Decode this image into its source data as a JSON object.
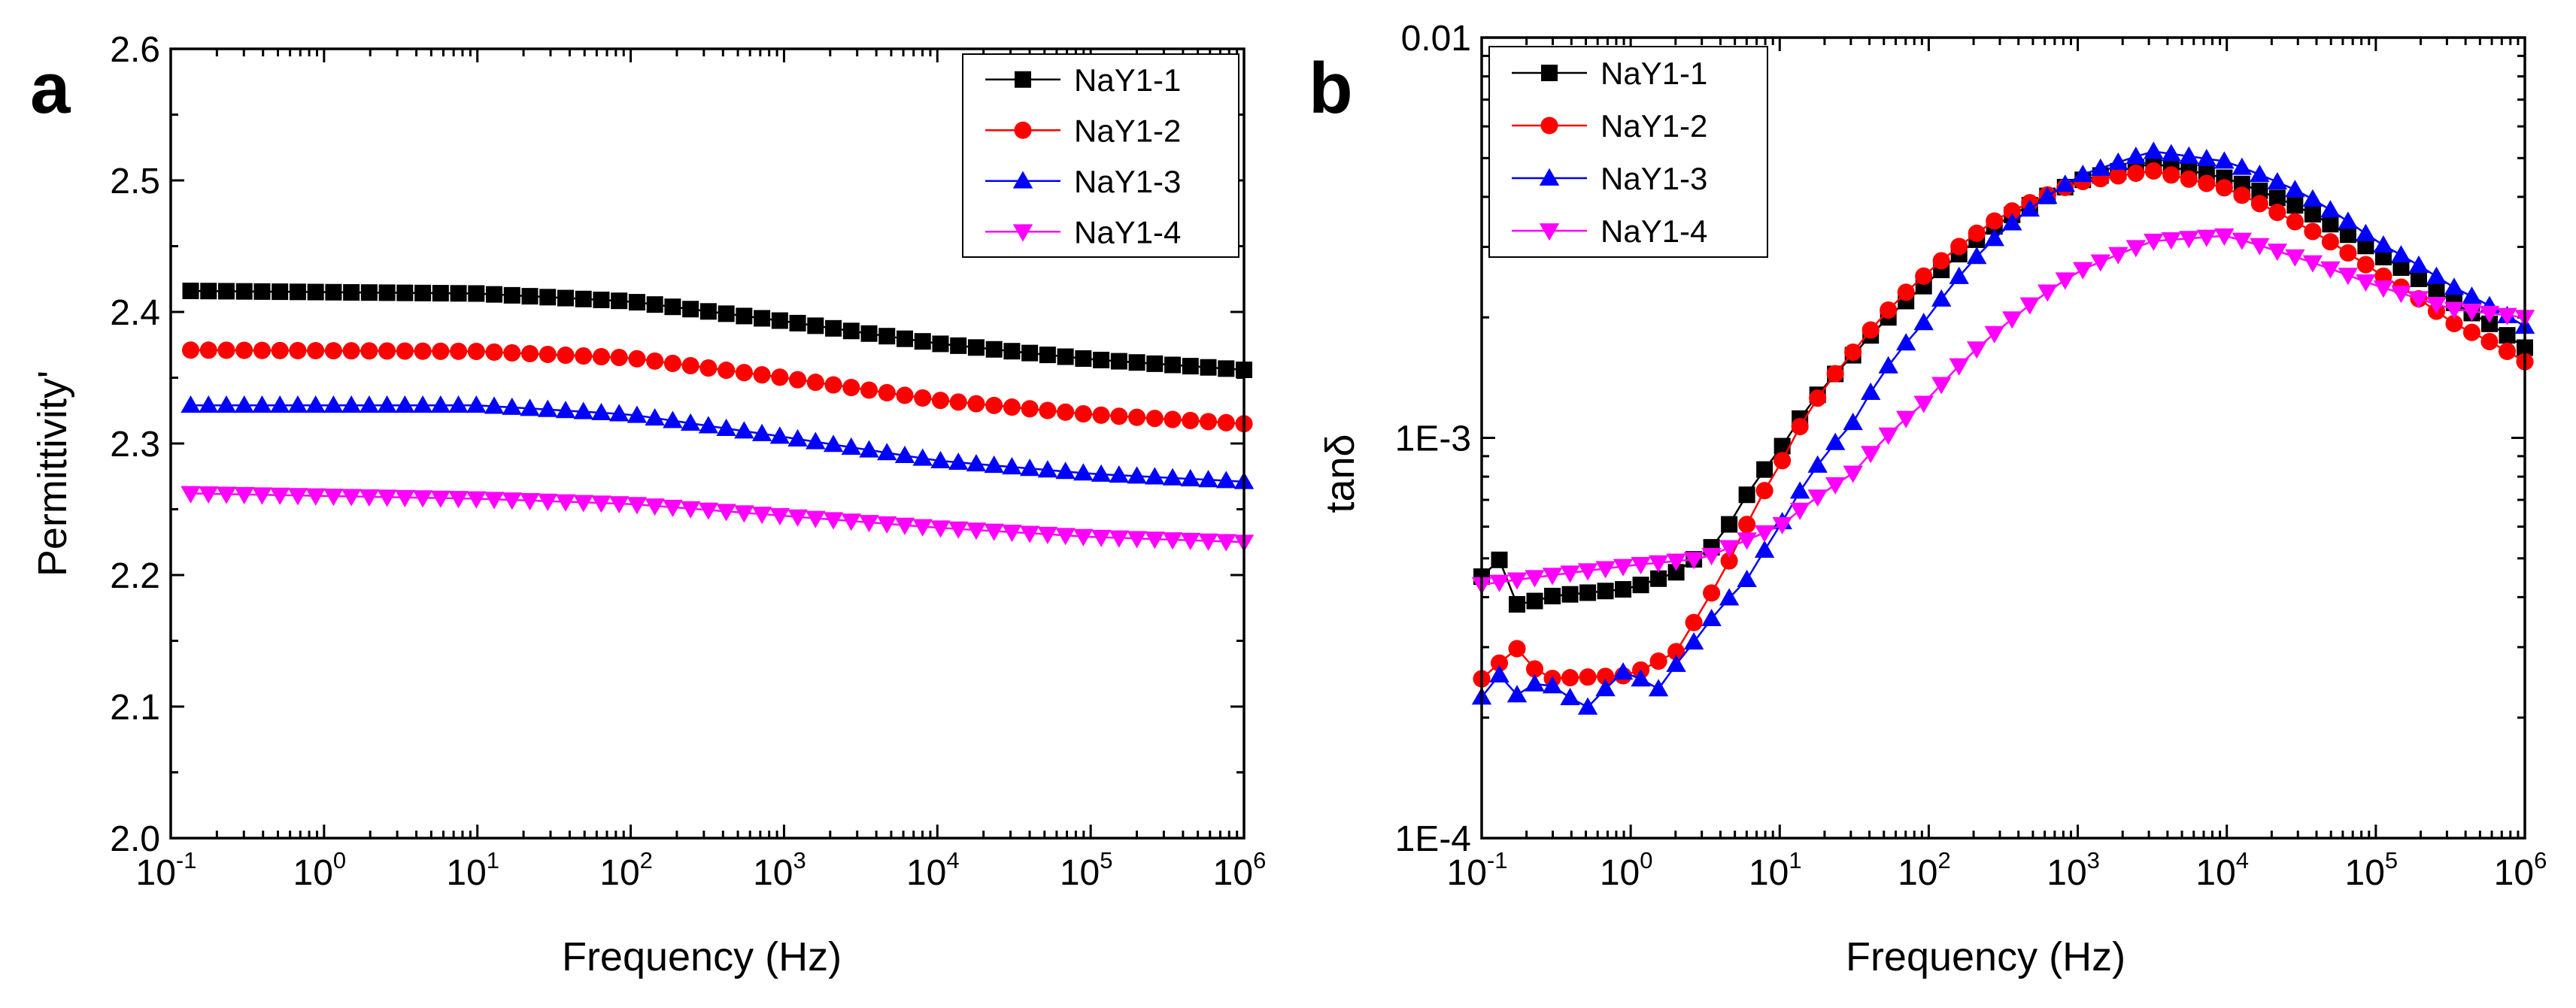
{
  "chart_data": [
    {
      "panel": "a",
      "type": "scatter",
      "title": "",
      "xlabel": "Frequency (Hz)",
      "ylabel": "Permittivity'",
      "xscale": "log",
      "yscale": "linear",
      "xlim": [
        0.1,
        1000000
      ],
      "ylim": [
        2.0,
        2.6
      ],
      "xticks": [
        {
          "base": "10",
          "exp": "-1"
        },
        {
          "base": "10",
          "exp": "0"
        },
        {
          "base": "10",
          "exp": "1"
        },
        {
          "base": "10",
          "exp": "2"
        },
        {
          "base": "10",
          "exp": "3"
        },
        {
          "base": "10",
          "exp": "4"
        },
        {
          "base": "10",
          "exp": "5"
        },
        {
          "base": "10",
          "exp": "6"
        }
      ],
      "yticks": [
        "2.0",
        "2.1",
        "2.2",
        "2.3",
        "2.4",
        "2.5",
        "2.6"
      ],
      "legend_position": "top-right",
      "point_count": 60,
      "log_x_range": [
        -0.87,
        6.0
      ],
      "series": [
        {
          "name": "NaY1-1",
          "color": "#000000",
          "marker": "square",
          "knots": [
            [
              -0.87,
              2.416
            ],
            [
              1.0,
              2.414
            ],
            [
              2.0,
              2.408
            ],
            [
              3.0,
              2.393
            ],
            [
              4.0,
              2.376
            ],
            [
              5.0,
              2.364
            ],
            [
              6.0,
              2.356
            ]
          ]
        },
        {
          "name": "NaY1-2",
          "color": "#ff0000",
          "marker": "circle",
          "knots": [
            [
              -0.87,
              2.371
            ],
            [
              1.0,
              2.37
            ],
            [
              2.0,
              2.365
            ],
            [
              3.0,
              2.35
            ],
            [
              4.0,
              2.333
            ],
            [
              5.0,
              2.322
            ],
            [
              6.0,
              2.315
            ]
          ]
        },
        {
          "name": "NaY1-3",
          "color": "#0000ff",
          "marker": "triangle-up",
          "knots": [
            [
              -0.87,
              2.329
            ],
            [
              1.0,
              2.329
            ],
            [
              2.0,
              2.322
            ],
            [
              3.0,
              2.305
            ],
            [
              4.0,
              2.287
            ],
            [
              5.0,
              2.277
            ],
            [
              6.0,
              2.271
            ]
          ]
        },
        {
          "name": "NaY1-4",
          "color": "#ff00ff",
          "marker": "triangle-down",
          "knots": [
            [
              -0.87,
              2.262
            ],
            [
              1.0,
              2.258
            ],
            [
              2.0,
              2.254
            ],
            [
              3.0,
              2.245
            ],
            [
              4.0,
              2.236
            ],
            [
              5.0,
              2.229
            ],
            [
              6.0,
              2.225
            ]
          ]
        }
      ]
    },
    {
      "panel": "b",
      "type": "scatter",
      "title": "",
      "xlabel": "Frequency (Hz)",
      "ylabel": "tanδ",
      "xscale": "log",
      "yscale": "log",
      "xlim": [
        0.1,
        1000000
      ],
      "ylim": [
        0.0001,
        0.01
      ],
      "xticks": [
        {
          "base": "10",
          "exp": "-1"
        },
        {
          "base": "10",
          "exp": "0"
        },
        {
          "base": "10",
          "exp": "1"
        },
        {
          "base": "10",
          "exp": "2"
        },
        {
          "base": "10",
          "exp": "3"
        },
        {
          "base": "10",
          "exp": "4"
        },
        {
          "base": "10",
          "exp": "5"
        },
        {
          "base": "10",
          "exp": "6"
        }
      ],
      "yticks": [
        "1E-4",
        "1E-3",
        "0.01"
      ],
      "legend_position": "top-left",
      "point_count": 60,
      "log_x_range": [
        -1.0,
        6.0
      ],
      "series": [
        {
          "name": "NaY1-1",
          "color": "#000000",
          "marker": "square",
          "knots": [
            [
              -1.0,
              0.00045
            ],
            [
              -0.87,
              0.0005
            ],
            [
              -0.75,
              0.00037
            ],
            [
              -0.6,
              0.0004
            ],
            [
              0.0,
              0.00042
            ],
            [
              0.3,
              0.00046
            ],
            [
              0.6,
              0.00055
            ],
            [
              1.0,
              0.00093
            ],
            [
              1.5,
              0.00162
            ],
            [
              2.0,
              0.00245
            ],
            [
              2.5,
              0.0035
            ],
            [
              3.0,
              0.00438
            ],
            [
              3.5,
              0.00485
            ],
            [
              4.0,
              0.00445
            ],
            [
              4.5,
              0.00375
            ],
            [
              5.0,
              0.0029
            ],
            [
              5.5,
              0.0022
            ],
            [
              6.0,
              0.00168
            ]
          ]
        },
        {
          "name": "NaY1-2",
          "color": "#ff0000",
          "marker": "circle",
          "knots": [
            [
              -1.0,
              0.00025
            ],
            [
              -0.75,
              0.0003
            ],
            [
              -0.6,
              0.00025
            ],
            [
              0.0,
              0.000255
            ],
            [
              0.3,
              0.00029
            ],
            [
              0.5,
              0.00038
            ],
            [
              0.7,
              0.00052
            ],
            [
              1.0,
              0.00085
            ],
            [
              1.5,
              0.00165
            ],
            [
              2.0,
              0.0026
            ],
            [
              2.5,
              0.0036
            ],
            [
              3.0,
              0.00435
            ],
            [
              3.5,
              0.00465
            ],
            [
              4.0,
              0.0042
            ],
            [
              4.5,
              0.0034
            ],
            [
              5.0,
              0.0026
            ],
            [
              5.5,
              0.00195
            ],
            [
              6.0,
              0.00155
            ]
          ]
        },
        {
          "name": "NaY1-3",
          "color": "#0000ff",
          "marker": "triangle-up",
          "knots": [
            [
              -1.0,
              0.000225
            ],
            [
              -0.9,
              0.00026
            ],
            [
              -0.75,
              0.000225
            ],
            [
              -0.6,
              0.00025
            ],
            [
              -0.3,
              0.00021
            ],
            [
              0.0,
              0.00027
            ],
            [
              0.15,
              0.000225
            ],
            [
              0.4,
              0.0003
            ],
            [
              0.8,
              0.00045
            ],
            [
              1.0,
              0.0006
            ],
            [
              1.5,
              0.0011
            ],
            [
              2.0,
              0.002
            ],
            [
              2.5,
              0.0033
            ],
            [
              3.0,
              0.0045
            ],
            [
              3.5,
              0.0052
            ],
            [
              4.0,
              0.0049
            ],
            [
              4.5,
              0.0041
            ],
            [
              5.0,
              0.0031
            ],
            [
              5.5,
              0.0024
            ],
            [
              6.0,
              0.0019
            ]
          ]
        },
        {
          "name": "NaY1-4",
          "color": "#ff00ff",
          "marker": "triangle-down",
          "knots": [
            [
              -1.0,
              0.00043
            ],
            [
              0.0,
              0.00048
            ],
            [
              0.5,
              0.0005
            ],
            [
              1.0,
              0.0006
            ],
            [
              1.5,
              0.00082
            ],
            [
              2.0,
              0.00125
            ],
            [
              2.5,
              0.0019
            ],
            [
              3.0,
              0.0026
            ],
            [
              3.5,
              0.0031
            ],
            [
              4.0,
              0.0032
            ],
            [
              4.5,
              0.0028
            ],
            [
              5.0,
              0.0024
            ],
            [
              5.5,
              0.0021
            ],
            [
              6.0,
              0.002
            ]
          ]
        }
      ]
    }
  ]
}
